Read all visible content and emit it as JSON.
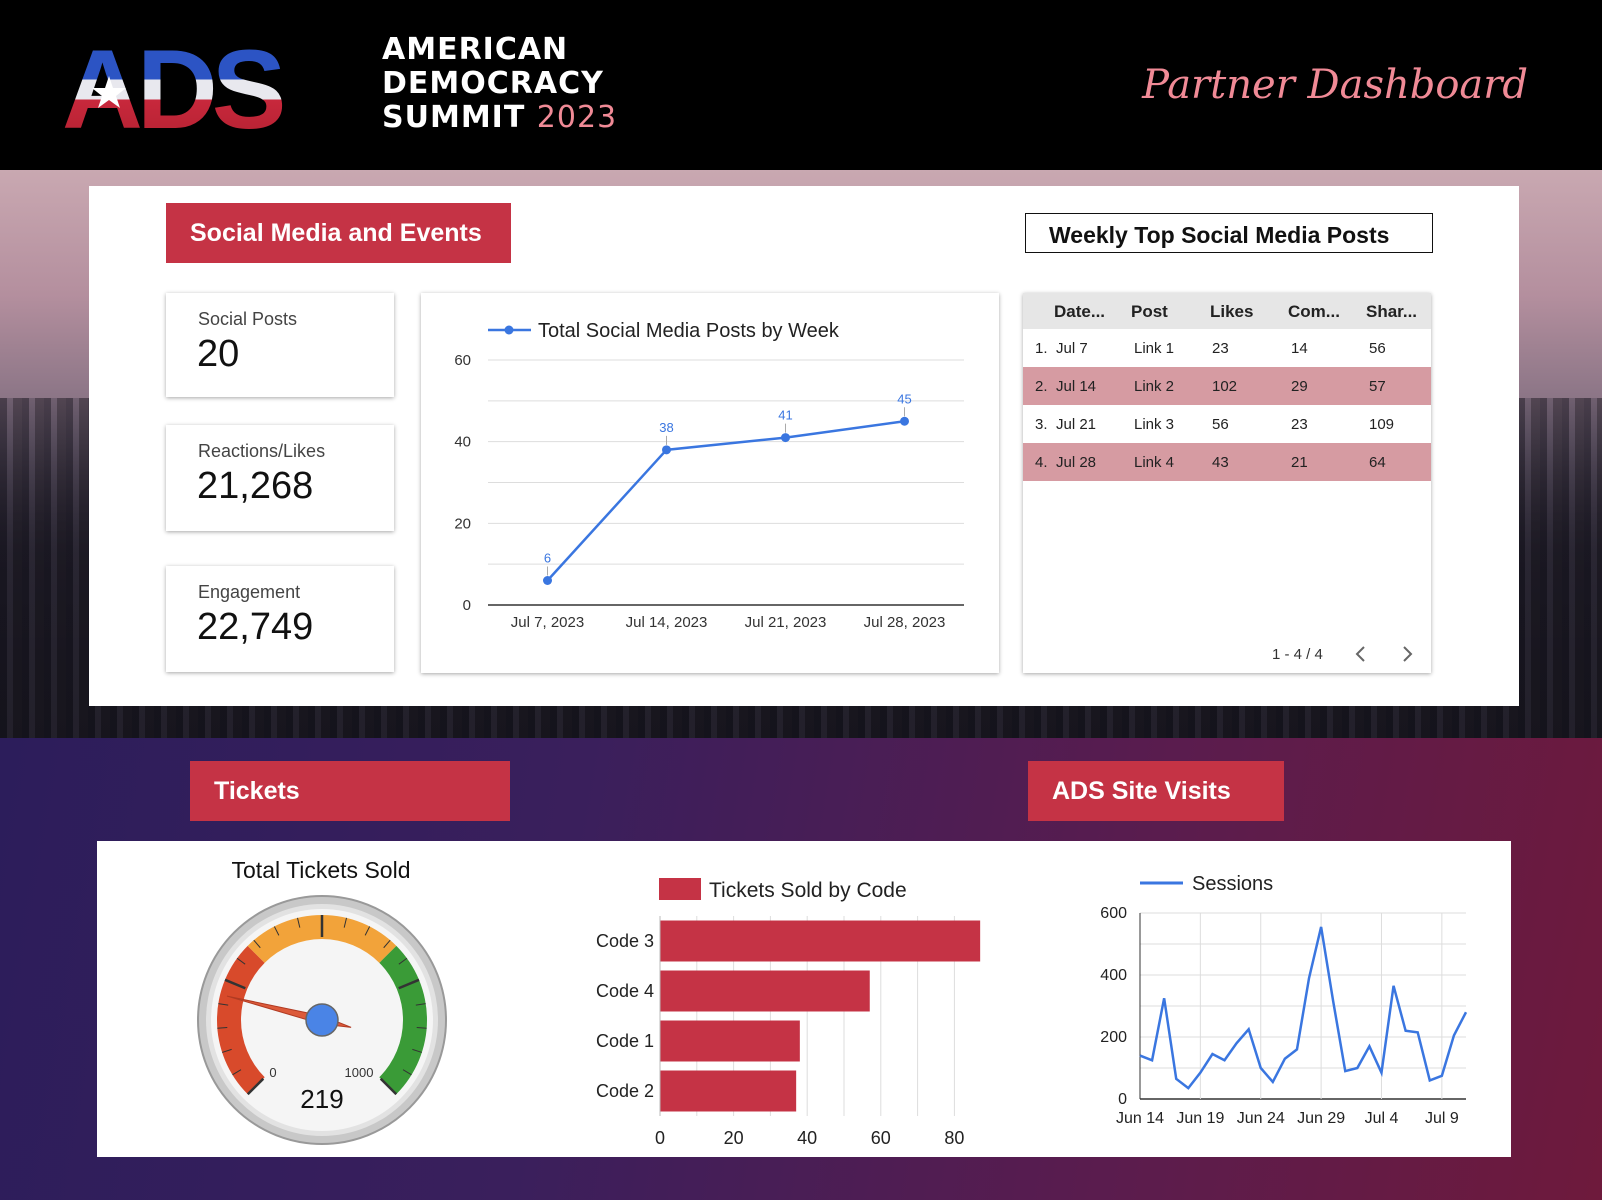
{
  "header": {
    "logo_line1": "AMERICAN",
    "logo_line2": "DEMOCRACY",
    "logo_line3": "SUMMIT",
    "logo_year": "2023",
    "logo_mark": "ADS",
    "dashboard_title": "Partner Dashboard"
  },
  "colors": {
    "accent_red": "#c53345",
    "series_blue": "#3a76e0",
    "title_pink": "#f08a96",
    "row_highlight": "#d69ba2"
  },
  "social_section": {
    "title": "Social Media and Events",
    "scorecards": [
      {
        "label": "Social Posts",
        "value": "20"
      },
      {
        "label": "Reactions/Likes",
        "value": "21,268"
      },
      {
        "label": "Engagement",
        "value": "22,749"
      }
    ]
  },
  "top_posts": {
    "title": "Weekly Top Social Media Posts",
    "columns": [
      "Date...",
      "Post",
      "Likes",
      "Com...",
      "Shar..."
    ],
    "rows": [
      {
        "n": "1.",
        "date": "Jul 7",
        "post": "Link 1",
        "likes": "23",
        "comments": "14",
        "shares": "56"
      },
      {
        "n": "2.",
        "date": "Jul 14",
        "post": "Link 2",
        "likes": "102",
        "comments": "29",
        "shares": "57"
      },
      {
        "n": "3.",
        "date": "Jul 21",
        "post": "Link 3",
        "likes": "56",
        "comments": "23",
        "shares": "109"
      },
      {
        "n": "4.",
        "date": "Jul 28",
        "post": "Link 4",
        "likes": "43",
        "comments": "21",
        "shares": "64"
      }
    ],
    "pagination": "1 - 4 / 4"
  },
  "tickets_section": {
    "title": "Tickets"
  },
  "visits_section": {
    "title": "ADS Site Visits"
  },
  "chart_data": [
    {
      "type": "line",
      "title": "",
      "legend": "Total Social Media Posts by Week",
      "series": [
        {
          "name": "Total Social Media Posts by Week",
          "values": [
            6,
            38,
            41,
            45
          ]
        }
      ],
      "x": [
        "Jul 7, 2023",
        "Jul 14, 2023",
        "Jul 21, 2023",
        "Jul 28, 2023"
      ],
      "data_labels": true,
      "ylim": [
        0,
        60
      ],
      "yticks": [
        0,
        20,
        40,
        60
      ],
      "grid": true,
      "legend_position": "top"
    },
    {
      "type": "gauge",
      "title": "Total Tickets Sold",
      "value": 219,
      "min": 0,
      "max": 1000,
      "min_label": "0",
      "max_label": "1000"
    },
    {
      "type": "bar",
      "orientation": "horizontal",
      "legend": "Tickets Sold by Code",
      "series": [
        {
          "name": "Tickets Sold by Code",
          "values": [
            87,
            57,
            38,
            37
          ]
        }
      ],
      "categories": [
        "Code 3",
        "Code 4",
        "Code 1",
        "Code 2"
      ],
      "xlim": [
        0,
        100
      ],
      "xticks": [
        0,
        20,
        40,
        60,
        80,
        100
      ],
      "grid": true,
      "legend_position": "top"
    },
    {
      "type": "line",
      "legend": "Sessions",
      "series": [
        {
          "name": "Sessions",
          "values": [
            140,
            125,
            325,
            65,
            35,
            85,
            145,
            125,
            180,
            225,
            100,
            55,
            130,
            160,
            390,
            555,
            315,
            90,
            100,
            170,
            85,
            365,
            220,
            215,
            60,
            75,
            205,
            280
          ]
        }
      ],
      "x_start": "Jun 14",
      "x_tick_labels": [
        "Jun 14",
        "Jun 19",
        "Jun 24",
        "Jun 29",
        "Jul 4",
        "Jul 9"
      ],
      "x_tick_index": [
        0,
        5,
        10,
        15,
        20,
        25
      ],
      "ylim": [
        0,
        600
      ],
      "yticks": [
        0,
        200,
        400,
        600
      ],
      "grid": true,
      "legend_position": "top"
    }
  ]
}
